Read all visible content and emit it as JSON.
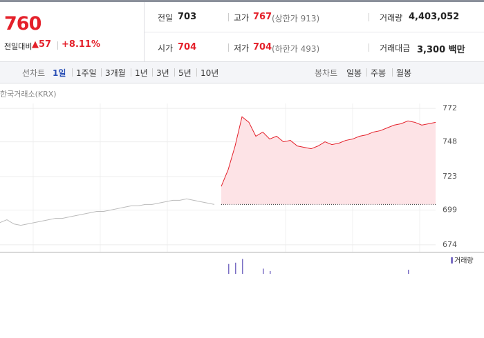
{
  "quote": {
    "price": "760",
    "change_label": "전일대비",
    "change": "▲57",
    "change_rate": "+8.11%"
  },
  "summary": {
    "rows": [
      [
        {
          "label": "전일",
          "value": "703"
        },
        {
          "label": "고가",
          "value": "767",
          "note": "(상한가 913)"
        },
        {
          "label": "거래량",
          "value": "4,403,052"
        }
      ],
      [
        {
          "label": "시가",
          "value": "704"
        },
        {
          "label": "저가",
          "value": "704",
          "note": "(하한가 493)"
        },
        {
          "label": "거래대금",
          "value": "3,300 백만"
        }
      ]
    ]
  },
  "tabs": {
    "line_label": "선차트",
    "line": [
      "1일",
      "1주일",
      "3개월",
      "1년",
      "3년",
      "5년",
      "10년"
    ],
    "candle_label": "봉차트",
    "candle": [
      "일봉",
      "주봉",
      "월봉"
    ]
  },
  "chart_data": {
    "type": "line",
    "source": "한국거래소(KRX)",
    "ylim": [
      669,
      780
    ],
    "yticks": [
      674,
      699,
      723,
      748,
      772
    ],
    "grid": true,
    "reference": 703,
    "series": [
      {
        "color": "#bbbbbb",
        "values": [
          690,
          692,
          689,
          688,
          689,
          690,
          691,
          692,
          693,
          693,
          694,
          695,
          696,
          697,
          698,
          698,
          699,
          700,
          701,
          702,
          702,
          703,
          703,
          704,
          705,
          706,
          706,
          707,
          706,
          705,
          704,
          703,
          null,
          null,
          null,
          null,
          null,
          null,
          null,
          null,
          null,
          null,
          null,
          null,
          null,
          null,
          null,
          null,
          null,
          null,
          null,
          null,
          null,
          null,
          null,
          null,
          null,
          null,
          null,
          null,
          null,
          null,
          null,
          null
        ]
      },
      {
        "color": "#e4202a",
        "fill": "#fde3e6",
        "values": [
          null,
          null,
          null,
          null,
          null,
          null,
          null,
          null,
          null,
          null,
          null,
          null,
          null,
          null,
          null,
          null,
          null,
          null,
          null,
          null,
          null,
          null,
          null,
          null,
          null,
          null,
          null,
          null,
          null,
          null,
          null,
          null,
          716,
          728,
          745,
          766,
          762,
          752,
          755,
          750,
          752,
          748,
          749,
          745,
          744,
          743,
          745,
          748,
          746,
          747,
          749,
          750,
          752,
          753,
          755,
          756,
          758,
          760,
          761,
          763,
          762,
          760,
          761,
          762
        ]
      }
    ],
    "volume": {
      "name": "거래량",
      "color": "#7b6fc4",
      "ylim": [
        0,
        100
      ],
      "values": [
        null,
        null,
        null,
        null,
        null,
        null,
        null,
        null,
        null,
        null,
        null,
        null,
        null,
        null,
        null,
        null,
        null,
        null,
        null,
        null,
        null,
        null,
        null,
        null,
        null,
        null,
        null,
        null,
        null,
        null,
        null,
        null,
        null,
        53,
        60,
        80,
        null,
        null,
        28,
        15,
        null,
        null,
        null,
        null,
        null,
        null,
        null,
        null,
        null,
        null,
        null,
        null,
        null,
        null,
        null,
        null,
        null,
        null,
        null,
        22,
        null,
        null,
        null,
        null
      ]
    }
  }
}
